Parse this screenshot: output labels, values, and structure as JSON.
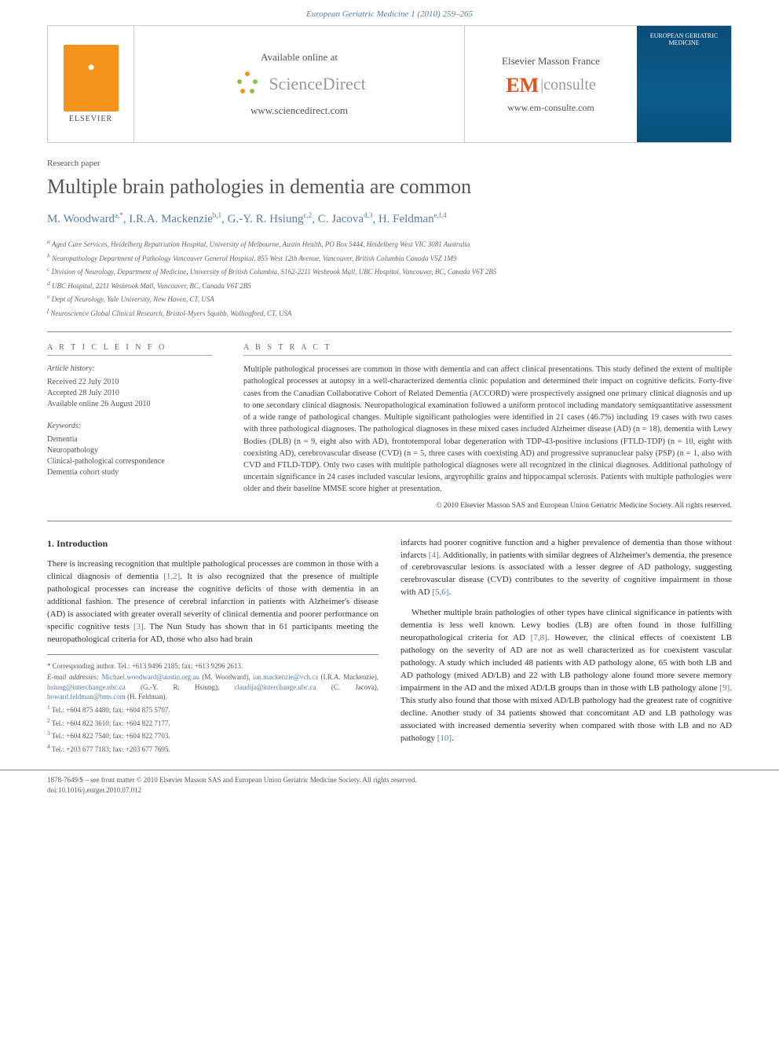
{
  "journal_header": "European Geriatric Medicine 1 (2010) 259–265",
  "branding": {
    "elsevier": "ELSEVIER",
    "sd_available": "Available online at",
    "sd_brand": "ScienceDirect",
    "sd_url": "www.sciencedirect.com",
    "em_head": "Elsevier Masson France",
    "em_brand1": "EM",
    "em_brand2": "|consulte",
    "em_url": "www.em-consulte.com",
    "cover_text": "EUROPEAN GERIATRIC MEDICINE"
  },
  "article_type": "Research paper",
  "title": "Multiple brain pathologies in dementia are common",
  "authors_html": "M. Woodward<sup>a,*</sup>, I.R.A. Mackenzie<sup>b,1</sup>, G.-Y. R. Hsiung<sup>c,2</sup>, C. Jacova<sup>d,3</sup>, H. Feldman<sup>e,f,4</sup>",
  "affiliations": [
    "a Aged Care Services, Heidelberg Repatriation Hospital, University of Melbourne, Austin Health, PO Box 5444, Heidelberg West VIC 3081 Australia",
    "b Neuropathology Department of Pathology Vancouver General Hospital, 855 West 12th Avenue, Vancouver, British Columbia Canada V5Z 1M9",
    "c Division of Neurology, Department of Medicine, University of British Columbia, S162-2211 Wesbrook Mall, UBC Hospital, Vancouver, BC, Canada V6T 2B5",
    "d UBC Hospital, 2211 Wesbrook Mall, Vancouver, BC, Canada V6T 2B5",
    "e Dept of Neurology, Yale University, New Haven, CT, USA",
    "f Neuroscience Global Clinical Research, Bristol-Myers Squibb, Wallingford, CT, USA"
  ],
  "info": {
    "head": "A R T I C L E  I N F O",
    "history_head": "Article history:",
    "history": [
      "Received 22 July 2010",
      "Accepted 28 July 2010",
      "Available online 26 August 2010"
    ],
    "keywords_head": "Keywords:",
    "keywords": [
      "Dementia",
      "Neuropathology",
      "Clinical-pathological correspondence",
      "Dementia cohort study"
    ]
  },
  "abstract": {
    "head": "A B S T R A C T",
    "text": "Multiple pathological processes are common in those with dementia and can affect clinical presentations. This study defined the extent of multiple pathological processes at autopsy in a well-characterized dementia clinic population and determined their impact on cognitive deficits. Forty-five cases from the Canadian Collaborative Cohort of Related Dementia (ACCORD) were prospectively assigned one primary clinical diagnosis and up to one secondary clinical diagnosis. Neuropathological examination followed a uniform protocol including mandatory semiquantitative assessment of a wide range of pathological changes. Multiple significant pathologies were identified in 21 cases (46.7%) including 19 cases with two cases with three pathological diagnoses. The pathological diagnoses in these mixed cases included Alzheimer disease (AD) (n = 18), dementia with Lewy Bodies (DLB) (n = 9, eight also with AD), frontotemporal lobar degeneration with TDP-43-positive inclusions (FTLD-TDP) (n = 10, eight with coexisting AD), cerebrovascular disease (CVD) (n = 5, three cases with coexisting AD) and progressive supranuclear palsy (PSP) (n = 1, also with CVD and FTLD-TDP). Only two cases with multiple pathological diagnoses were all recognized in the clinical diagnoses. Additional pathology of uncertain significance in 24 cases included vascular lesions, argyrophilic grains and hippocampal sclerosis. Patients with multiple pathologies were older and their baseline MMSE score higher at presentation.",
    "copy": "© 2010 Elsevier Masson SAS and European Union Geriatric Medicine Society. All rights reserved."
  },
  "body": {
    "section_head": "1. Introduction",
    "col1_p1": "There is increasing recognition that multiple pathological processes are common in those with a clinical diagnosis of dementia [1,2]. It is also recognized that the presence of multiple pathological processes can increase the cognitive deficits of those with dementia in an additional fashion. The presence of cerebral infarction in patients with Alzheimer's disease (AD) is associated with greater overall severity of clinical dementia and poorer performance on specific cognitive tests [3]. The Nun Study has shown that in 61 participants meeting the neuropathological criteria for AD, those who also had brain",
    "col2_p1": "infarcts had poorer cognitive function and a higher prevalence of dementia than those without infarcts [4]. Additionally, in patients with similar degrees of Alzheimer's dementia, the presence of cerebrovascular lesions is associated with a lesser degree of AD pathology, suggesting cerebrovascular disease (CVD) contributes to the severity of cognitive impairment in those with AD [5,6].",
    "col2_p2": "Whether multiple brain pathologies of other types have clinical significance in patients with dementia is less well known. Lewy bodies (LB) are often found in those fulfilling neuropathological criteria for AD [7,8]. However, the clinical effects of coexistent LB pathology on the severity of AD are not as well characterized as for coexistent vascular pathology. A study which included 48 patients with AD pathology alone, 65 with both LB and AD pathology (mixed AD/LB) and 22 with LB pathology alone found more severe memory impairment in the AD and the mixed AD/LB groups than in those with LB pathology alone [9]. This study also found that those with mixed AD/LB pathology had the greatest rate of cognitive decline. Another study of 34 patients showed that concomitant AD and LB pathology was associated with increased dementia severity when compared with those with LB and no AD pathology [10]."
  },
  "footnotes": {
    "corresponding": "* Corresponding author. Tel.: +613 9496 2185; fax: +613 9296 2613.",
    "email_label": "E-mail addresses:",
    "emails": [
      {
        "addr": "Michael.woodward@austin.org.au",
        "who": "(M. Woodward)"
      },
      {
        "addr": "ian.mackenzie@vch.ca",
        "who": "(I.R.A. Mackenzie)"
      },
      {
        "addr": "hsiung@interchange.ubc.ca",
        "who": ""
      },
      {
        "addr": "",
        "who": "(G.-Y. R. Hsiung)"
      },
      {
        "addr": "claudija@interchange.ubc.ca",
        "who": "(C. Jacova)"
      },
      {
        "addr": "howard.feldman@bms.com",
        "who": ""
      },
      {
        "addr": "",
        "who": "(H. Feldman)."
      }
    ],
    "tels": [
      "1 Tel.: +604 875 4480; fax: +604 875 5707.",
      "2 Tel.: +604 822 3610; fax: +604 822 7177.",
      "3 Tel.: +604 822 7540; fax: +604 822 7703.",
      "4 Tel.: +203 677 7183; fax: +203 677 7695."
    ]
  },
  "footer": {
    "line1": "1878-7649/$ – see front matter © 2010 Elsevier Masson SAS and European Union Geriatric Medicine Society. All rights reserved.",
    "line2": "doi:10.1016/j.eurger.2010.07.012"
  },
  "colors": {
    "link": "#5a7ca8",
    "elsevier_orange": "#f7941e",
    "em_orange": "#e94e1b",
    "cover_blue": "#0a4d7a"
  }
}
